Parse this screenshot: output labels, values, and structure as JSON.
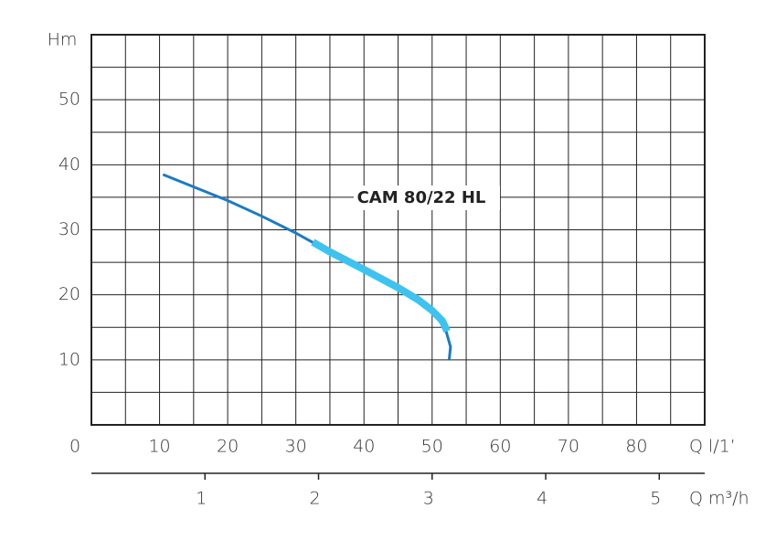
{
  "chart_data": {
    "type": "line",
    "xlabel": "Q l/1’",
    "ylabel": "Hm",
    "x2label": "Q m³/h",
    "xlim": [
      0,
      90
    ],
    "xticks": [
      0,
      10,
      20,
      30,
      40,
      50,
      60,
      70,
      80
    ],
    "ylim": [
      0,
      60
    ],
    "yticks": [
      10,
      20,
      30,
      40,
      50
    ],
    "x2lim": [
      0,
      5.4
    ],
    "x2ticks": [
      1,
      2,
      3,
      4,
      5
    ],
    "xgrid": [
      0,
      5,
      10,
      15,
      20,
      25,
      30,
      35,
      40,
      45,
      50,
      55,
      60,
      65,
      70,
      75,
      80,
      85,
      90
    ],
    "ygrid": [
      0,
      5,
      10,
      15,
      20,
      25,
      30,
      35,
      40,
      45,
      50,
      55,
      60
    ],
    "series": [
      {
        "name": "CAM 80/22 HL",
        "color": "#1b7bc4",
        "x": [
          10.5,
          15,
          20,
          25,
          30,
          35,
          40,
          45,
          50,
          52,
          52.7,
          52.5
        ],
        "values": [
          38.5,
          36.6,
          34.5,
          32.1,
          29.5,
          26.6,
          23.9,
          21.1,
          17.6,
          14.6,
          12,
          10
        ]
      },
      {
        "color": "#3ec3ef",
        "x": [
          32.5,
          35,
          40,
          45,
          48,
          50,
          51.5,
          52.2
        ],
        "values": [
          28.1,
          26.6,
          23.9,
          21.1,
          19.2,
          17.6,
          16,
          14.4
        ]
      }
    ]
  }
}
